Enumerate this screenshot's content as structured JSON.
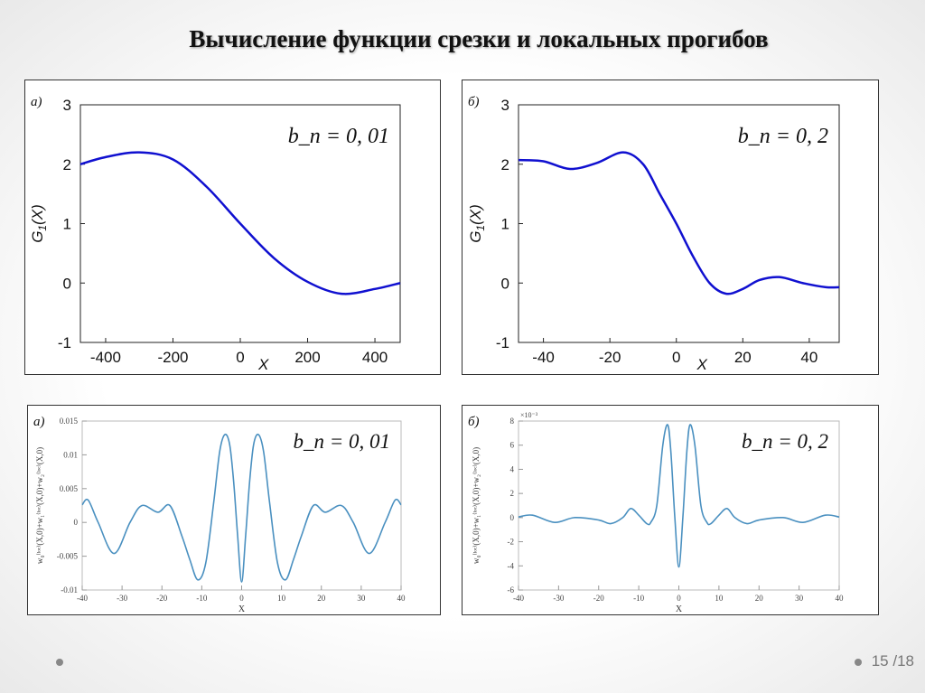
{
  "slide": {
    "title": "Вычисление функции срезки и локальных прогибов",
    "page": "15",
    "total": "/18"
  },
  "chart_data": [
    {
      "type": "line",
      "panel_label": "а)",
      "annotation": "b_n = 0, 01",
      "annot_main": "b",
      "annot_sub": "n",
      "annot_rest": " = 0, 01",
      "ylabel_main": "G",
      "ylabel_sub": "1",
      "ylabel_rest": "(X)",
      "xlabel": "X",
      "xlim": [
        -475,
        475
      ],
      "ylim": [
        -1,
        3
      ],
      "xticks": [
        -400,
        -200,
        0,
        200,
        400
      ],
      "yticks": [
        -1,
        0,
        1,
        2,
        3
      ],
      "color": "#1010d0",
      "style": "big",
      "x": [
        -475,
        -400,
        -300,
        -200,
        -100,
        0,
        100,
        200,
        300,
        400,
        475
      ],
      "y": [
        2.0,
        2.12,
        2.2,
        2.08,
        1.62,
        1.0,
        0.42,
        0.02,
        -0.18,
        -0.1,
        0.0
      ]
    },
    {
      "type": "line",
      "panel_label": "б)",
      "annotation": "b_n = 0, 2",
      "annot_main": "b",
      "annot_sub": "n",
      "annot_rest": " = 0, 2",
      "ylabel_main": "G",
      "ylabel_sub": "1",
      "ylabel_rest": "(X)",
      "xlabel": "X",
      "xlim": [
        -47.5,
        49
      ],
      "ylim": [
        -1,
        3
      ],
      "xticks": [
        -40,
        -20,
        0,
        20,
        40
      ],
      "yticks": [
        -1,
        0,
        1,
        2,
        3
      ],
      "color": "#1010d0",
      "style": "big",
      "x": [
        -47.5,
        -40,
        -32,
        -24,
        -16,
        -10,
        -5,
        0,
        5,
        10,
        15,
        20,
        25,
        31,
        38,
        45,
        49
      ],
      "y": [
        2.07,
        2.05,
        1.92,
        2.02,
        2.2,
        2.0,
        1.5,
        1.0,
        0.45,
        0.0,
        -0.18,
        -0.1,
        0.05,
        0.1,
        0.0,
        -0.07,
        -0.07
      ]
    },
    {
      "type": "line",
      "panel_label": "а)",
      "annotation": "b_n = 0, 01",
      "annot_main": "b",
      "annot_sub": "n",
      "annot_rest": " = 0, 01",
      "ylabel_main": "w₀⁽ˡᵒᶜ⁾(X,0)+w₁⁽ˡᵒᶜ⁾(X,0)+w₂⁽ˡᵒᶜ⁾(X,0)",
      "xlabel": "X",
      "xlim": [
        -40,
        40
      ],
      "ylim": [
        -0.01,
        0.015
      ],
      "xticks": [
        -40,
        -30,
        -20,
        -10,
        0,
        10,
        20,
        30,
        40
      ],
      "yticks": [
        -0.01,
        -0.005,
        0,
        0.005,
        0.01,
        0.015
      ],
      "color": "#4a90c0",
      "style": "small",
      "x": [
        -40,
        -38.5,
        -36,
        -32,
        -28,
        -25,
        -21,
        -18,
        -15,
        -13,
        -11,
        -9,
        -7,
        -5.5,
        -4.2,
        -3,
        -2,
        -1,
        0,
        1,
        2,
        3,
        4.2,
        5.5,
        7,
        9,
        11,
        13,
        15,
        18,
        21,
        25,
        28,
        32,
        36,
        38.5,
        40
      ],
      "y": [
        0.0026,
        0.0033,
        0.0,
        -0.0046,
        0.0,
        0.0025,
        0.0015,
        0.0025,
        -0.002,
        -0.0055,
        -0.0085,
        -0.006,
        0.003,
        0.0105,
        0.013,
        0.0115,
        0.006,
        -0.002,
        -0.0088,
        -0.002,
        0.006,
        0.0115,
        0.013,
        0.0105,
        0.003,
        -0.006,
        -0.0085,
        -0.0055,
        -0.002,
        0.0025,
        0.0015,
        0.0025,
        0.0,
        -0.0046,
        0.0,
        0.0033,
        0.0026
      ]
    },
    {
      "type": "line",
      "panel_label": "б)",
      "annotation": "b_n = 0, 2",
      "annot_main": "b",
      "annot_sub": "n",
      "annot_rest": " = 0, 2",
      "ylabel_main": "w₀⁽ˡᵒᶜ⁾(X,0)+w₁⁽ˡᵒᶜ⁾(X,0)+w₂⁽ˡᵒᶜ⁾(X,0)",
      "xlabel": "X",
      "exponent": "×10⁻³",
      "xlim": [
        -40,
        40
      ],
      "ylim": [
        -6,
        8
      ],
      "xticks": [
        -40,
        -30,
        -20,
        -10,
        0,
        10,
        20,
        30,
        40
      ],
      "yticks": [
        -6,
        -4,
        -2,
        0,
        2,
        4,
        6,
        8
      ],
      "color": "#4a90c0",
      "style": "small",
      "x": [
        -40,
        -36.5,
        -31,
        -26,
        -20,
        -17,
        -14,
        -12,
        -10,
        -8,
        -7,
        -5.5,
        -4,
        -2.8,
        -2,
        -1,
        0,
        1,
        2,
        2.8,
        4,
        5.5,
        7,
        8,
        10,
        12,
        14,
        17,
        20,
        26,
        31,
        36.5,
        40
      ],
      "y": [
        0.05,
        0.2,
        -0.4,
        0,
        -0.2,
        -0.5,
        0,
        0.75,
        0.2,
        -0.5,
        -0.4,
        1,
        6,
        7.7,
        5.5,
        0,
        -4.1,
        0,
        5.5,
        7.7,
        6,
        1,
        -0.4,
        -0.5,
        0.2,
        0.75,
        0,
        -0.5,
        -0.2,
        0,
        -0.4,
        0.2,
        0.05
      ]
    }
  ]
}
